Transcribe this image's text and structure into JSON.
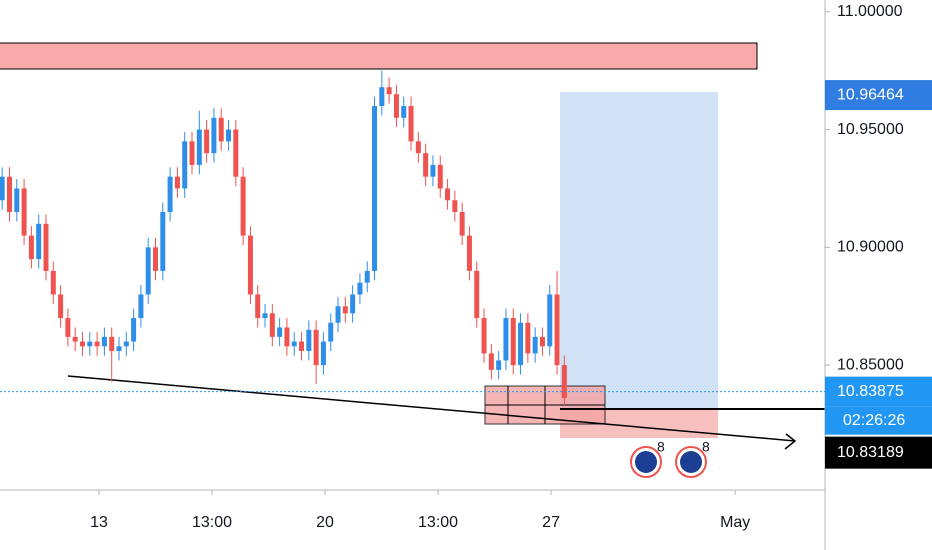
{
  "chart_data": {
    "type": "candlestick",
    "open": [
      10.92,
      10.93,
      10.915,
      10.925,
      10.905,
      10.895,
      10.91,
      10.89,
      10.88,
      10.87,
      10.862,
      10.86,
      10.858,
      10.86,
      10.858,
      10.862,
      10.856,
      10.858,
      10.86,
      10.87,
      10.88,
      10.9,
      10.89,
      10.915,
      10.93,
      10.925,
      10.945,
      10.935,
      10.95,
      10.94,
      10.955,
      10.945,
      10.95,
      10.93,
      10.905,
      10.88,
      10.87,
      10.872,
      10.862,
      10.866,
      10.858,
      10.86,
      10.856,
      10.865,
      10.85,
      10.86,
      10.868,
      10.875,
      10.872,
      10.88,
      10.885,
      10.89,
      10.96,
      10.968,
      10.965,
      10.955,
      10.96,
      10.945,
      10.94,
      10.93,
      10.935,
      10.925,
      10.92,
      10.915,
      10.905,
      10.89,
      10.87,
      10.855,
      10.848,
      10.852,
      10.87,
      10.85,
      10.868,
      10.855,
      10.862,
      10.858,
      10.88,
      10.85
    ],
    "high": [
      10.934,
      10.934,
      10.929,
      10.929,
      10.909,
      10.914,
      10.914,
      10.894,
      10.884,
      10.874,
      10.866,
      10.864,
      10.864,
      10.864,
      10.866,
      10.866,
      10.862,
      10.864,
      10.874,
      10.884,
      10.904,
      10.904,
      10.919,
      10.934,
      10.934,
      10.949,
      10.949,
      10.958,
      10.954,
      10.959,
      10.959,
      10.954,
      10.954,
      10.934,
      10.909,
      10.884,
      10.876,
      10.876,
      10.87,
      10.87,
      10.864,
      10.864,
      10.869,
      10.869,
      10.864,
      10.872,
      10.879,
      10.879,
      10.884,
      10.889,
      10.894,
      10.964,
      10.975,
      10.972,
      10.969,
      10.964,
      10.964,
      10.949,
      10.944,
      10.939,
      10.939,
      10.929,
      10.924,
      10.919,
      10.909,
      10.894,
      10.874,
      10.859,
      10.856,
      10.874,
      10.874,
      10.872,
      10.872,
      10.866,
      10.866,
      10.884,
      10.89,
      10.854
    ],
    "low": [
      10.916,
      10.911,
      10.911,
      10.901,
      10.891,
      10.891,
      10.886,
      10.876,
      10.866,
      10.858,
      10.856,
      10.854,
      10.854,
      10.854,
      10.854,
      10.843,
      10.852,
      10.854,
      10.856,
      10.866,
      10.876,
      10.886,
      10.886,
      10.911,
      10.921,
      10.921,
      10.931,
      10.931,
      10.936,
      10.936,
      10.941,
      10.941,
      10.926,
      10.901,
      10.876,
      10.866,
      10.866,
      10.858,
      10.858,
      10.854,
      10.854,
      10.852,
      10.852,
      10.842,
      10.846,
      10.856,
      10.864,
      10.868,
      10.868,
      10.876,
      10.881,
      10.886,
      10.956,
      10.961,
      10.951,
      10.951,
      10.941,
      10.936,
      10.926,
      10.926,
      10.921,
      10.916,
      10.911,
      10.901,
      10.886,
      10.866,
      10.851,
      10.844,
      10.844,
      10.848,
      10.846,
      10.846,
      10.851,
      10.851,
      10.854,
      10.854,
      10.846,
      10.833
    ],
    "close": [
      10.93,
      10.915,
      10.925,
      10.905,
      10.895,
      10.91,
      10.89,
      10.88,
      10.87,
      10.862,
      10.86,
      10.858,
      10.86,
      10.858,
      10.862,
      10.856,
      10.858,
      10.86,
      10.87,
      10.88,
      10.9,
      10.89,
      10.915,
      10.93,
      10.925,
      10.945,
      10.935,
      10.95,
      10.94,
      10.955,
      10.945,
      10.95,
      10.93,
      10.905,
      10.88,
      10.87,
      10.872,
      10.862,
      10.866,
      10.858,
      10.86,
      10.856,
      10.865,
      10.85,
      10.86,
      10.868,
      10.875,
      10.872,
      10.88,
      10.885,
      10.89,
      10.96,
      10.968,
      10.965,
      10.955,
      10.96,
      10.945,
      10.94,
      10.93,
      10.935,
      10.925,
      10.92,
      10.915,
      10.905,
      10.89,
      10.87,
      10.855,
      10.848,
      10.852,
      10.87,
      10.85,
      10.868,
      10.855,
      10.862,
      10.858,
      10.88,
      10.85,
      10.836
    ],
    "up_color": "#2e8ee8",
    "down_color": "#ef5350",
    "xlim": [
      -0.3,
      112.7
    ],
    "xticks": [
      {
        "value": 13.26,
        "label": "13"
      },
      {
        "value": 28.74,
        "label": "13:00"
      },
      {
        "value": 44.22,
        "label": "20"
      },
      {
        "value": 59.7,
        "label": "13:00"
      },
      {
        "value": 75.18,
        "label": "27"
      },
      {
        "value": 100.4,
        "label": "May"
      }
    ],
    "ylim": [
      10.797,
      11.005
    ],
    "yticks": [
      {
        "value": 11.0,
        "label": "11.00000"
      },
      {
        "value": 10.95,
        "label": "10.95000"
      },
      {
        "value": 10.9,
        "label": "10.90000"
      },
      {
        "value": 10.85,
        "label": "10.85000"
      }
    ],
    "price_badges": [
      {
        "value": 10.96464,
        "label": "10.96464",
        "color": "#2f7de1"
      },
      {
        "value": 10.83875,
        "label": "10.83875",
        "color": "#2196f3"
      }
    ],
    "countdown": "02:26:26",
    "crosshair_badge": {
      "value": 10.83189,
      "label": "10.83189"
    },
    "event_labels": [
      "8",
      "8"
    ]
  }
}
